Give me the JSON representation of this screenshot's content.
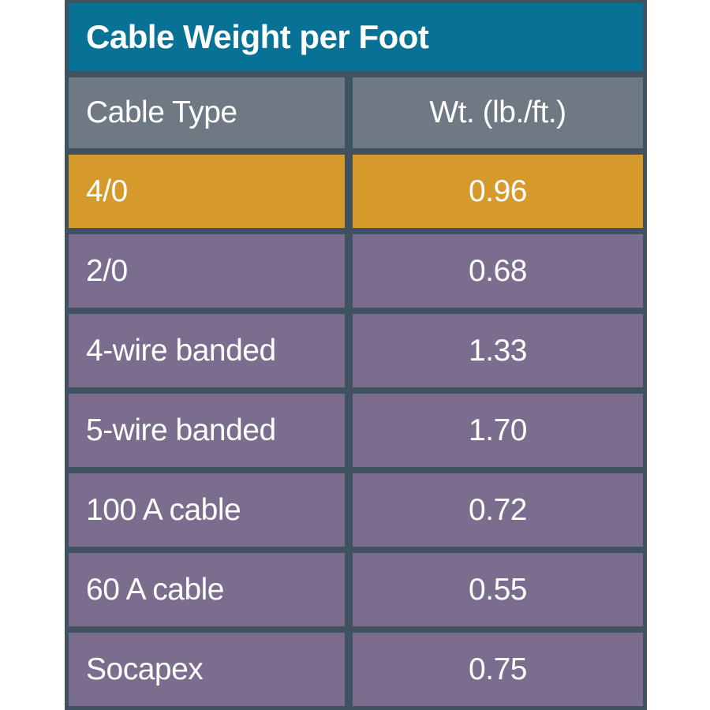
{
  "chart_data": {
    "type": "table",
    "title": "Cable Weight per Foot",
    "columns": {
      "type_label": "Cable Type",
      "weight_label": "Wt. (lb./ft.)"
    },
    "rows": [
      {
        "type": "4/0",
        "weight": "0.96",
        "highlighted": true
      },
      {
        "type": "2/0",
        "weight": "0.68",
        "highlighted": false
      },
      {
        "type": "4-wire banded",
        "weight": "1.33",
        "highlighted": false
      },
      {
        "type": "5-wire banded",
        "weight": "1.70",
        "highlighted": false
      },
      {
        "type": "100 A cable",
        "weight": "0.72",
        "highlighted": false
      },
      {
        "type": "60 A cable",
        "weight": "0.55",
        "highlighted": false
      },
      {
        "type": "Socapex",
        "weight": "0.75",
        "highlighted": false
      }
    ]
  },
  "colors": {
    "header_teal": "#077295",
    "column_header_gray": "#6f7983",
    "row_purple": "#7a6d8d",
    "highlight_orange": "#d6992b",
    "frame_slate": "#40525f",
    "text_white": "#ffffff"
  }
}
